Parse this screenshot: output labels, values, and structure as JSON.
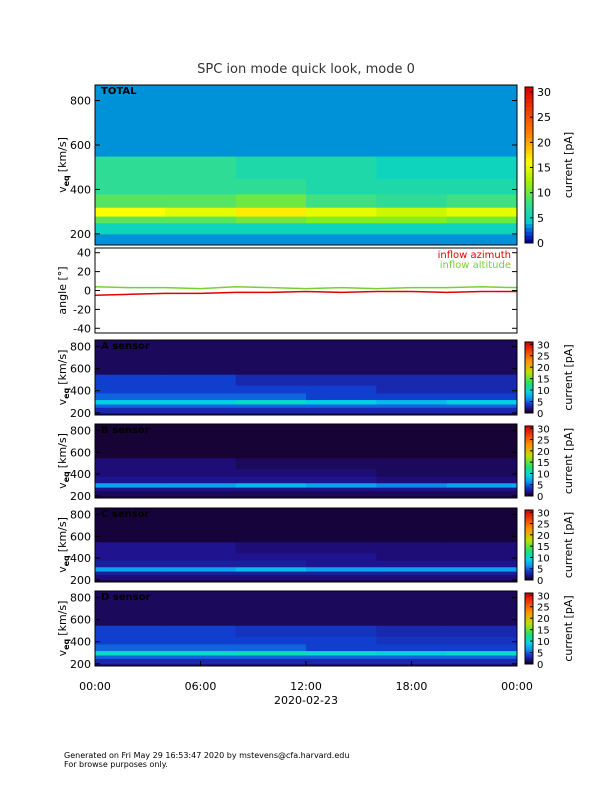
{
  "chart_data": [
    {
      "type": "heatmap",
      "title": "SPC ion mode quick look, mode 0",
      "label": "TOTAL",
      "colormap": "rainbow",
      "ylabel": "v",
      "ylabel_sub": "eq",
      "ylabel_unit": "[km/s]",
      "clabel": "current [pA]",
      "xlim": [
        0,
        24
      ],
      "ylim": [
        150,
        870
      ],
      "yticks": [
        200,
        400,
        600,
        800
      ],
      "clim": [
        0,
        31
      ],
      "cticks": [
        0,
        5,
        10,
        15,
        20,
        25,
        30
      ],
      "xbins": [
        0,
        4,
        8,
        12,
        16,
        20,
        24
      ],
      "ybins": [
        150,
        200,
        250,
        280,
        320,
        380,
        450,
        550,
        870
      ],
      "values": [
        [
          3,
          3,
          3,
          3,
          3,
          3
        ],
        [
          5,
          5,
          5,
          5,
          5,
          5
        ],
        [
          9,
          9,
          10,
          11,
          11,
          10
        ],
        [
          16,
          15,
          17,
          15,
          14,
          15
        ],
        [
          9,
          9,
          10,
          8,
          7,
          8
        ],
        [
          7,
          7,
          7,
          6,
          6,
          6
        ],
        [
          7,
          7,
          6,
          6,
          5,
          5
        ],
        [
          3,
          3,
          3,
          3,
          3,
          3
        ]
      ]
    },
    {
      "type": "line",
      "ylabel": "angle [°]",
      "xlim": [
        0,
        24
      ],
      "ylim": [
        -45,
        45
      ],
      "yticks": [
        -40,
        -20,
        0,
        20,
        40
      ],
      "legend": "upper right",
      "x": [
        0,
        2,
        4,
        6,
        8,
        10,
        12,
        14,
        16,
        18,
        20,
        22,
        24
      ],
      "series": [
        {
          "name": "inflow azimuth",
          "color": "#e00000",
          "values": [
            -5,
            -4,
            -3,
            -3,
            -2,
            -2,
            -1,
            -2,
            -1,
            -1,
            -2,
            -1,
            -1
          ]
        },
        {
          "name": "inflow altitude",
          "color": "#7ad030",
          "values": [
            4,
            3,
            3,
            2,
            4,
            3,
            2,
            3,
            2,
            3,
            3,
            4,
            3
          ]
        }
      ]
    },
    {
      "type": "heatmap",
      "label": "A sensor",
      "colormap": "dark",
      "ylabel": "v",
      "ylabel_sub": "eq",
      "ylabel_unit": "[km/s]",
      "clabel": "current [pA]",
      "xlim": [
        0,
        24
      ],
      "ylim": [
        180,
        860
      ],
      "yticks": [
        200,
        400,
        600,
        800
      ],
      "clim": [
        0,
        31
      ],
      "cticks": [
        0,
        5,
        10,
        15,
        20,
        25,
        30
      ],
      "xbins": [
        0,
        4,
        8,
        12,
        16,
        20,
        24
      ],
      "ybins": [
        180,
        200,
        250,
        280,
        320,
        380,
        450,
        550,
        860
      ],
      "values": [
        [
          1,
          1,
          1,
          1,
          1,
          1
        ],
        [
          3,
          3,
          3,
          3,
          3,
          3
        ],
        [
          5,
          5,
          5,
          5,
          5,
          5
        ],
        [
          9,
          9,
          10,
          9,
          8,
          9
        ],
        [
          5,
          5,
          5,
          4,
          4,
          4
        ],
        [
          4,
          4,
          4,
          4,
          3,
          3
        ],
        [
          4,
          4,
          3,
          3,
          3,
          3
        ],
        [
          1,
          1,
          1,
          1,
          1,
          1
        ]
      ]
    },
    {
      "type": "heatmap",
      "label": "B sensor",
      "colormap": "dark",
      "ylabel": "v",
      "ylabel_sub": "eq",
      "ylabel_unit": "[km/s]",
      "clabel": "current [pA]",
      "xlim": [
        0,
        24
      ],
      "ylim": [
        180,
        860
      ],
      "yticks": [
        200,
        400,
        600,
        800
      ],
      "clim": [
        0,
        31
      ],
      "cticks": [
        0,
        5,
        10,
        15,
        20,
        25,
        30
      ],
      "xbins": [
        0,
        4,
        8,
        12,
        16,
        20,
        24
      ],
      "ybins": [
        180,
        200,
        250,
        280,
        320,
        380,
        450,
        550,
        860
      ],
      "values": [
        [
          0.5,
          0.5,
          0.5,
          0.5,
          0.5,
          0.5
        ],
        [
          1,
          1,
          1,
          1,
          1,
          1
        ],
        [
          2,
          2,
          2,
          2,
          2,
          2
        ],
        [
          7,
          7,
          8,
          7,
          6,
          7
        ],
        [
          2,
          2,
          2,
          2,
          1.5,
          1.5
        ],
        [
          1.5,
          1.5,
          1.5,
          1.5,
          1,
          1
        ],
        [
          1.5,
          1.5,
          1,
          1,
          1,
          1
        ],
        [
          0.3,
          0.3,
          0.3,
          0.3,
          0.3,
          0.3
        ]
      ]
    },
    {
      "type": "heatmap",
      "label": "C sensor",
      "colormap": "dark",
      "ylabel": "v",
      "ylabel_sub": "eq",
      "ylabel_unit": "[km/s]",
      "clabel": "current [pA]",
      "xlim": [
        0,
        24
      ],
      "ylim": [
        180,
        860
      ],
      "yticks": [
        200,
        400,
        600,
        800
      ],
      "clim": [
        0,
        31
      ],
      "cticks": [
        0,
        5,
        10,
        15,
        20,
        25,
        30
      ],
      "xbins": [
        0,
        4,
        8,
        12,
        16,
        20,
        24
      ],
      "ybins": [
        180,
        200,
        250,
        280,
        320,
        380,
        450,
        550,
        860
      ],
      "values": [
        [
          0.5,
          0.5,
          0.5,
          0.5,
          0.5,
          0.5
        ],
        [
          1.5,
          1.5,
          1.5,
          1.5,
          1.5,
          1.5
        ],
        [
          2.5,
          2.5,
          2.5,
          2.5,
          2.5,
          2.5
        ],
        [
          7,
          7,
          8,
          7,
          7,
          7
        ],
        [
          2.5,
          2.5,
          2.5,
          2,
          2,
          2
        ],
        [
          2,
          2,
          2,
          2,
          1.5,
          1.5
        ],
        [
          2,
          2,
          1.5,
          1.5,
          1.5,
          1.5
        ],
        [
          0.4,
          0.4,
          0.4,
          0.4,
          0.4,
          0.4
        ]
      ]
    },
    {
      "type": "heatmap",
      "label": "D sensor",
      "colormap": "dark",
      "xlabel": "2020-02-23",
      "ylabel": "v",
      "ylabel_sub": "eq",
      "ylabel_unit": "[km/s]",
      "clabel": "current [pA]",
      "xlim": [
        0,
        24
      ],
      "ylim": [
        180,
        860
      ],
      "yticks": [
        200,
        400,
        600,
        800
      ],
      "clim": [
        0,
        31
      ],
      "cticks": [
        0,
        5,
        10,
        15,
        20,
        25,
        30
      ],
      "xticks": [
        {
          "value": 0,
          "label": "00:00"
        },
        {
          "value": 6,
          "label": "06:00"
        },
        {
          "value": 12,
          "label": "12:00"
        },
        {
          "value": 18,
          "label": "18:00"
        },
        {
          "value": 24,
          "label": "00:00"
        }
      ],
      "xbins": [
        0,
        4,
        8,
        12,
        16,
        20,
        24
      ],
      "ybins": [
        180,
        200,
        250,
        280,
        320,
        380,
        450,
        550,
        860
      ],
      "values": [
        [
          1,
          1,
          1,
          1,
          1,
          1
        ],
        [
          3,
          3,
          3,
          3,
          3,
          3
        ],
        [
          5,
          5,
          5,
          5,
          5,
          5
        ],
        [
          10,
          10,
          11,
          10,
          9,
          10
        ],
        [
          5,
          5,
          5,
          4,
          4,
          4
        ],
        [
          4,
          4,
          4,
          4,
          3.5,
          3.5
        ],
        [
          4,
          4,
          3.5,
          3.5,
          3,
          3
        ],
        [
          1,
          1,
          1,
          1,
          1,
          1
        ]
      ]
    }
  ],
  "footer": [
    "Generated on Fri May 29 16:53:47 2020 by mstevens@cfa.harvard.edu",
    "For browse purposes only."
  ]
}
